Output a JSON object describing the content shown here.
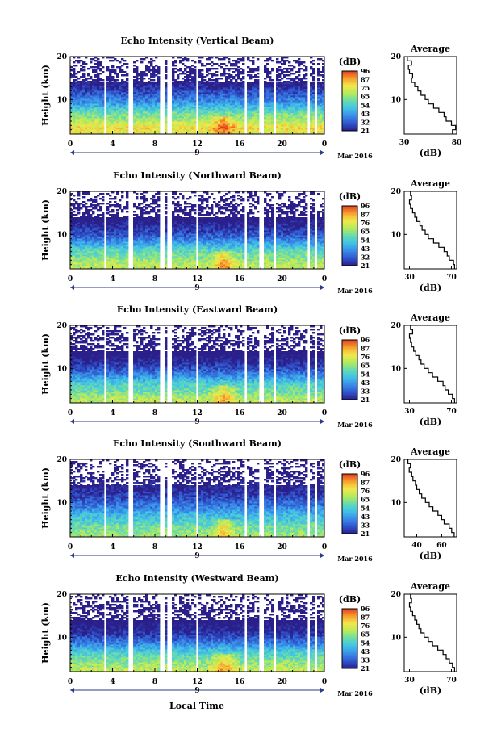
{
  "figure": {
    "xlabel": "Local Time",
    "date_day": "9",
    "date_text": "Mar 2016",
    "height_label": "Height (km)",
    "cbar_unit": "(dB)",
    "avg_title": "Average",
    "avg_xlabel": "(dB)",
    "colors": {
      "scale": [
        "#2b1f8a",
        "#2f56d0",
        "#3a8ee8",
        "#3fc3e8",
        "#66dbb0",
        "#b6ea5a",
        "#f2e84a",
        "#f7a12e",
        "#e23a1d"
      ],
      "frame": "#000000",
      "axis_arrow": "#2b3a8a"
    }
  },
  "chart_data": [
    {
      "type": "heatmap",
      "title": "Echo Intensity (Vertical Beam)",
      "xlabel": "Local Time",
      "ylabel": "Height (km)",
      "x_ticks": [
        "0",
        "4",
        "8",
        "12",
        "16",
        "20",
        "0"
      ],
      "y_ticks": [
        "20",
        "10"
      ],
      "xlim": [
        0,
        24
      ],
      "ylim": [
        2,
        20
      ],
      "colorbar": {
        "label": "(dB)",
        "ticks": [
          "96",
          "87",
          "75",
          "65",
          "54",
          "43",
          "32",
          "21"
        ],
        "range": [
          21,
          96
        ]
      },
      "gaps_hours": [
        [
          3.2,
          3.5
        ],
        [
          5.6,
          5.9
        ],
        [
          8.4,
          8.8
        ],
        [
          9.2,
          9.5
        ],
        [
          12.0,
          12.2
        ],
        [
          16.4,
          16.6
        ],
        [
          17.8,
          18.3
        ],
        [
          19.3,
          19.5
        ],
        [
          22.3,
          22.6
        ],
        [
          23.1,
          23.3
        ]
      ],
      "average_profile": {
        "title": "Average",
        "xlabel": "(dB)",
        "x_ticks": [
          "30",
          "80"
        ],
        "y_ticks": [
          "20",
          "10"
        ],
        "xlim": [
          30,
          80
        ],
        "ylim": [
          2,
          20
        ],
        "height_km": [
          2.5,
          3.5,
          4.5,
          5.5,
          6.5,
          7.5,
          8.5,
          9.5,
          10.5,
          11.5,
          12.5,
          13.5,
          14.5,
          15.5,
          16.5,
          17.5,
          18.5,
          19.5
        ],
        "values_db": [
          76,
          79,
          75,
          70,
          68,
          63,
          58,
          53,
          50,
          46,
          43,
          40,
          37,
          38,
          35,
          34,
          37,
          33
        ]
      }
    },
    {
      "type": "heatmap",
      "title": "Echo Intensity (Northward Beam)",
      "xlabel": "Local Time",
      "ylabel": "Height (km)",
      "x_ticks": [
        "0",
        "4",
        "8",
        "12",
        "16",
        "20",
        "0"
      ],
      "y_ticks": [
        "20",
        "10"
      ],
      "xlim": [
        0,
        24
      ],
      "ylim": [
        2,
        20
      ],
      "colorbar": {
        "label": "(dB)",
        "ticks": [
          "96",
          "87",
          "76",
          "65",
          "54",
          "43",
          "32",
          "21"
        ],
        "range": [
          21,
          96
        ]
      },
      "gaps_hours": [
        [
          3.2,
          3.5
        ],
        [
          5.6,
          5.9
        ],
        [
          8.4,
          8.8
        ],
        [
          9.2,
          9.5
        ],
        [
          12.0,
          12.2
        ],
        [
          16.4,
          16.6
        ],
        [
          17.8,
          18.3
        ],
        [
          19.3,
          19.5
        ],
        [
          22.3,
          22.6
        ],
        [
          23.1,
          23.3
        ]
      ],
      "average_profile": {
        "title": "Average",
        "xlabel": "(dB)",
        "x_ticks": [
          "30",
          "70"
        ],
        "y_ticks": [
          "20",
          "10"
        ],
        "xlim": [
          25,
          75
        ],
        "ylim": [
          2,
          20
        ],
        "height_km": [
          2.5,
          3.5,
          4.5,
          5.5,
          6.5,
          7.5,
          8.5,
          9.5,
          10.5,
          11.5,
          12.5,
          13.5,
          14.5,
          15.5,
          16.5,
          17.5,
          18.5,
          19.5
        ],
        "values_db": [
          73,
          72,
          68,
          66,
          63,
          58,
          53,
          48,
          45,
          42,
          40,
          37,
          35,
          33,
          31,
          30,
          32,
          31
        ]
      }
    },
    {
      "type": "heatmap",
      "title": "Echo Intensity (Eastward Beam)",
      "xlabel": "Local Time",
      "ylabel": "Height (km)",
      "x_ticks": [
        "0",
        "4",
        "8",
        "12",
        "16",
        "20",
        "0"
      ],
      "y_ticks": [
        "20",
        "10"
      ],
      "xlim": [
        0,
        24
      ],
      "ylim": [
        2,
        20
      ],
      "colorbar": {
        "label": "(dB)",
        "ticks": [
          "96",
          "87",
          "76",
          "65",
          "54",
          "43",
          "33",
          "21"
        ],
        "range": [
          21,
          96
        ]
      },
      "gaps_hours": [
        [
          3.2,
          3.5
        ],
        [
          5.6,
          5.9
        ],
        [
          8.4,
          8.8
        ],
        [
          9.2,
          9.5
        ],
        [
          12.0,
          12.2
        ],
        [
          16.4,
          16.6
        ],
        [
          17.8,
          18.3
        ],
        [
          19.3,
          19.5
        ],
        [
          22.3,
          22.6
        ],
        [
          23.1,
          23.3
        ]
      ],
      "average_profile": {
        "title": "Average",
        "xlabel": "(dB)",
        "x_ticks": [
          "30",
          "70"
        ],
        "y_ticks": [
          "20",
          "10"
        ],
        "xlim": [
          25,
          75
        ],
        "ylim": [
          2,
          20
        ],
        "height_km": [
          2.5,
          3.5,
          4.5,
          5.5,
          6.5,
          7.5,
          8.5,
          9.5,
          10.5,
          11.5,
          12.5,
          13.5,
          14.5,
          15.5,
          16.5,
          17.5,
          18.5,
          19.5
        ],
        "values_db": [
          73,
          71,
          67,
          64,
          62,
          57,
          52,
          48,
          44,
          41,
          39,
          36,
          34,
          32,
          31,
          30,
          33,
          31
        ]
      }
    },
    {
      "type": "heatmap",
      "title": "Echo Intensity (Southward Beam)",
      "xlabel": "Local Time",
      "ylabel": "Height (km)",
      "x_ticks": [
        "0",
        "4",
        "8",
        "12",
        "16",
        "20",
        "0"
      ],
      "y_ticks": [
        "20",
        "10"
      ],
      "xlim": [
        0,
        24
      ],
      "ylim": [
        2,
        20
      ],
      "colorbar": {
        "label": "(dB)",
        "ticks": [
          "96",
          "87",
          "76",
          "65",
          "54",
          "43",
          "33",
          "21"
        ],
        "range": [
          21,
          96
        ]
      },
      "gaps_hours": [
        [
          3.2,
          3.5
        ],
        [
          5.6,
          5.9
        ],
        [
          8.4,
          8.8
        ],
        [
          9.2,
          9.5
        ],
        [
          12.0,
          12.2
        ],
        [
          16.4,
          16.6
        ],
        [
          17.8,
          18.3
        ],
        [
          19.3,
          19.5
        ],
        [
          22.3,
          22.6
        ],
        [
          23.1,
          23.3
        ]
      ],
      "average_profile": {
        "title": "Average",
        "xlabel": "(dB)",
        "x_ticks": [
          "40",
          "60"
        ],
        "y_ticks": [
          "20",
          "10"
        ],
        "xlim": [
          30,
          72
        ],
        "ylim": [
          2,
          20
        ],
        "height_km": [
          2.5,
          3.5,
          4.5,
          5.5,
          6.5,
          7.5,
          8.5,
          9.5,
          10.5,
          11.5,
          12.5,
          13.5,
          14.5,
          15.5,
          16.5,
          17.5,
          18.5,
          19.5
        ],
        "values_db": [
          70,
          68,
          66,
          62,
          60,
          57,
          53,
          50,
          47,
          44,
          42,
          40,
          39,
          37,
          36,
          34,
          35,
          33
        ]
      }
    },
    {
      "type": "heatmap",
      "title": "Echo Intensity (Westward Beam)",
      "xlabel": "Local Time",
      "ylabel": "Height (km)",
      "x_ticks": [
        "0",
        "4",
        "8",
        "12",
        "16",
        "20",
        "0"
      ],
      "y_ticks": [
        "20",
        "10"
      ],
      "xlim": [
        0,
        24
      ],
      "ylim": [
        2,
        20
      ],
      "colorbar": {
        "label": "(dB)",
        "ticks": [
          "96",
          "87",
          "76",
          "65",
          "54",
          "43",
          "33",
          "21"
        ],
        "range": [
          21,
          96
        ]
      },
      "gaps_hours": [
        [
          3.2,
          3.5
        ],
        [
          5.6,
          5.9
        ],
        [
          8.4,
          8.8
        ],
        [
          9.2,
          9.5
        ],
        [
          12.0,
          12.2
        ],
        [
          16.4,
          16.6
        ],
        [
          17.8,
          18.3
        ],
        [
          19.3,
          19.5
        ],
        [
          22.3,
          22.6
        ],
        [
          23.1,
          23.3
        ]
      ],
      "average_profile": {
        "title": "Average",
        "xlabel": "(dB)",
        "x_ticks": [
          "30",
          "70"
        ],
        "y_ticks": [
          "20",
          "10"
        ],
        "xlim": [
          25,
          75
        ],
        "ylim": [
          2,
          20
        ],
        "height_km": [
          2.5,
          3.5,
          4.5,
          5.5,
          6.5,
          7.5,
          8.5,
          9.5,
          10.5,
          11.5,
          12.5,
          13.5,
          14.5,
          15.5,
          16.5,
          17.5,
          18.5,
          19.5
        ],
        "values_db": [
          73,
          71,
          68,
          65,
          62,
          57,
          52,
          48,
          44,
          41,
          39,
          37,
          35,
          33,
          31,
          30,
          32,
          31
        ]
      }
    }
  ]
}
